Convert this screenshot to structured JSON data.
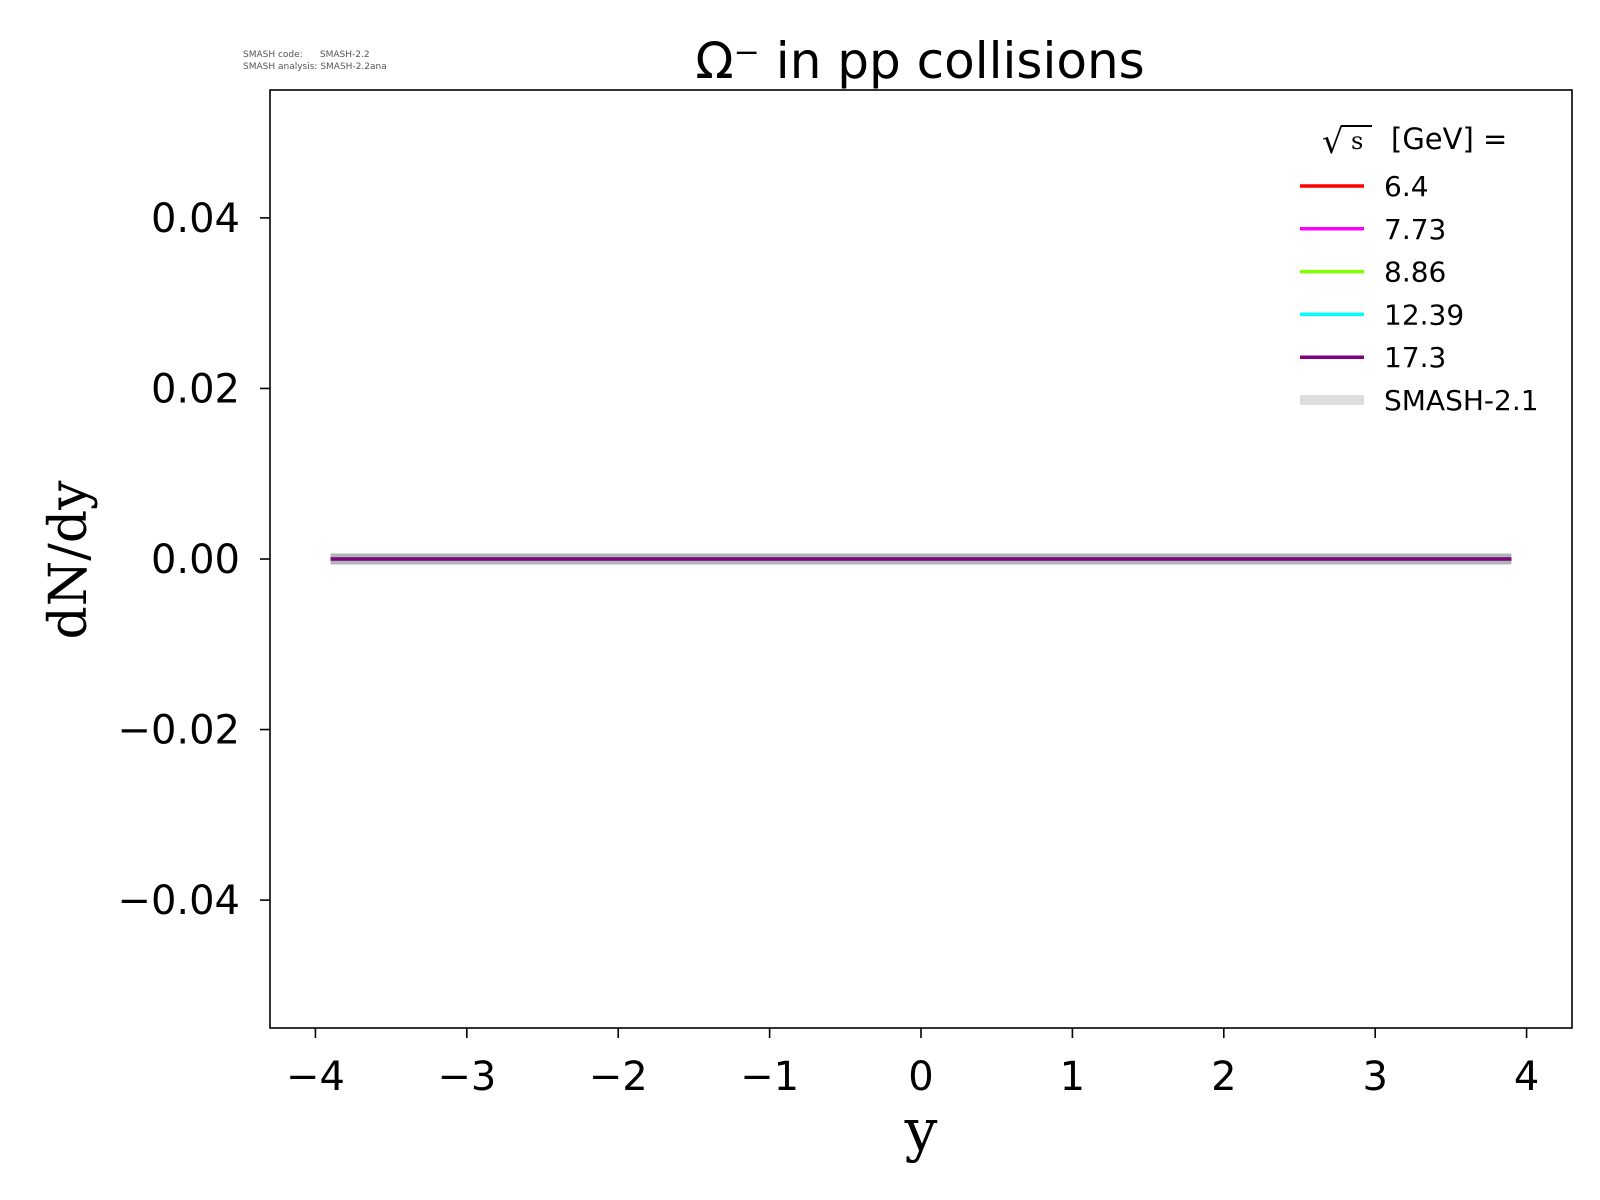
{
  "meta": {
    "code_label": "SMASH code:",
    "code_value": "SMASH-2.2",
    "analysis_label": "SMASH analysis:",
    "analysis_value": "SMASH-2.2ana"
  },
  "chart_data": {
    "type": "line",
    "title": "Ω⁻ in pp collisions",
    "xlabel": "y",
    "ylabel": "dN/dy",
    "xlim": [
      -4.3,
      4.3
    ],
    "ylim": [
      -0.055,
      0.055
    ],
    "xticks": [
      -4,
      -3,
      -2,
      -1,
      0,
      1,
      2,
      3,
      4
    ],
    "xtick_labels": [
      "−4",
      "−3",
      "−2",
      "−1",
      "0",
      "1",
      "2",
      "3",
      "4"
    ],
    "yticks": [
      -0.04,
      -0.02,
      0.0,
      0.02,
      0.04
    ],
    "ytick_labels": [
      "−0.04",
      "−0.02",
      "0.00",
      "0.02",
      "0.04"
    ],
    "grid": false,
    "legend": {
      "placement": "top-right",
      "title_root": "√",
      "title_radicand": "s",
      "title_suffix": "[GeV] ="
    },
    "series": [
      {
        "name": "6.4",
        "color": "#ff0000",
        "x": [
          -3.9,
          3.9
        ],
        "y": [
          0.0,
          0.0
        ]
      },
      {
        "name": "7.73",
        "color": "#ff00ff",
        "x": [
          -3.9,
          3.9
        ],
        "y": [
          0.0,
          0.0
        ]
      },
      {
        "name": "8.86",
        "color": "#7fff00",
        "x": [
          -3.9,
          3.9
        ],
        "y": [
          0.0,
          0.0
        ]
      },
      {
        "name": "12.39",
        "color": "#00ffff",
        "x": [
          -3.9,
          3.9
        ],
        "y": [
          0.0,
          0.0
        ]
      },
      {
        "name": "17.3",
        "color": "#800080",
        "x": [
          -3.9,
          3.9
        ],
        "y": [
          0.0,
          0.0
        ]
      },
      {
        "name": "SMASH-2.1",
        "color": "#999999",
        "reference": true,
        "x": [
          -3.9,
          3.9
        ],
        "y": [
          0.0,
          0.0
        ]
      }
    ]
  }
}
